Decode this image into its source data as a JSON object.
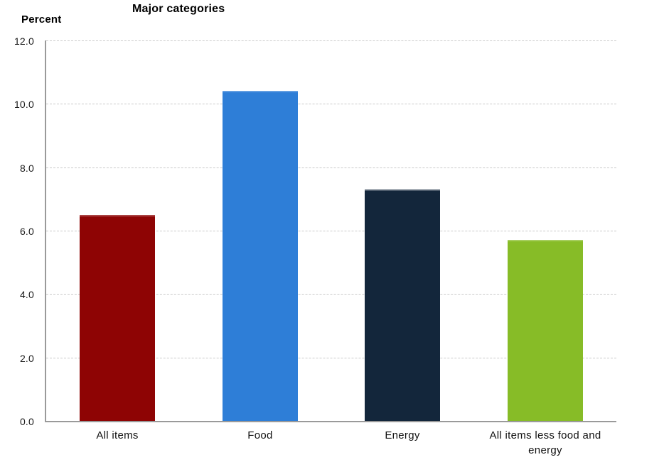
{
  "header": {
    "title": "Major categories",
    "unit_label": "Percent"
  },
  "chart_data": {
    "type": "bar",
    "title": "Major categories",
    "ylabel": "Percent",
    "xlabel": "",
    "categories": [
      "All items",
      "Food",
      "Energy",
      "All items less food and energy"
    ],
    "values": [
      6.5,
      10.4,
      7.3,
      5.7
    ],
    "ylim": [
      0,
      12
    ],
    "ytick_step": 2,
    "ytick_labels": [
      "0.0",
      "2.0",
      "4.0",
      "6.0",
      "8.0",
      "10.0",
      "12.0"
    ],
    "grid": "horizontal-dashed",
    "legend_position": "none",
    "bar_colors": [
      "#8E0404",
      "#2E7ED7",
      "#13263B",
      "#87BC27"
    ],
    "axis_color": "#9A9A9A",
    "grid_color": "#C9C9C9",
    "background_color": "#FFFFFF",
    "text_color": "#000000"
  }
}
